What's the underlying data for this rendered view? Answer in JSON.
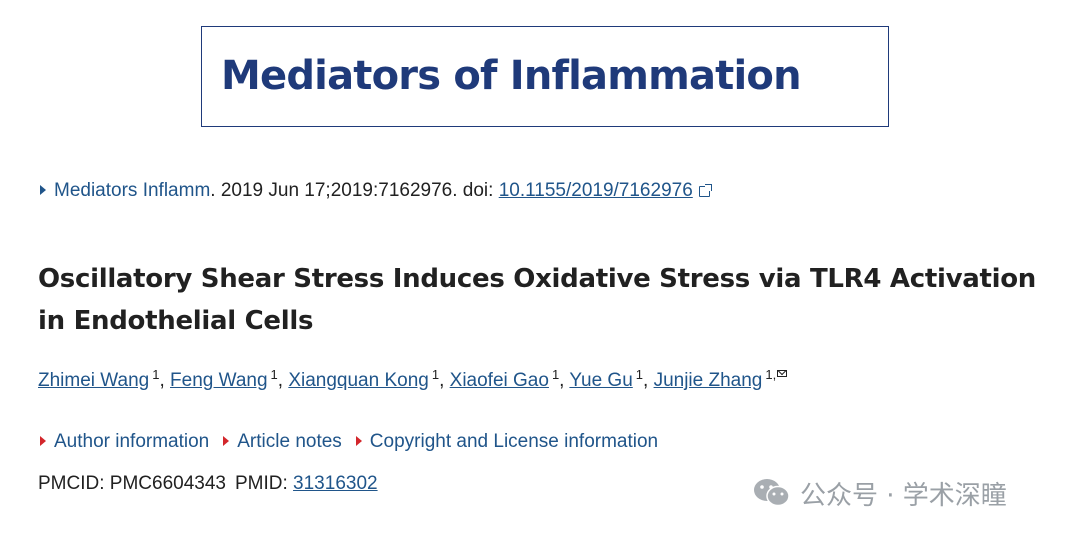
{
  "journal_banner": {
    "name": "Mediators of Inflammation"
  },
  "citation": {
    "journal": "Mediators Inflamm",
    "details": ". 2019 Jun 17;2019:7162976. doi: ",
    "doi": "10.1155/2019/7162976"
  },
  "article": {
    "title": "Oscillatory Shear Stress Induces Oxidative Stress via TLR4 Activation in Endothelial Cells"
  },
  "authors": [
    {
      "name": "Zhimei Wang",
      "affiliation": "1"
    },
    {
      "name": "Feng Wang",
      "affiliation": "1"
    },
    {
      "name": "Xiangquan Kong",
      "affiliation": "1"
    },
    {
      "name": "Xiaofei Gao",
      "affiliation": "1"
    },
    {
      "name": "Yue Gu",
      "affiliation": "1"
    },
    {
      "name": "Junjie Zhang",
      "affiliation": "1,"
    }
  ],
  "info_links": {
    "author_information": "Author information",
    "article_notes": "Article notes",
    "copyright": "Copyright and License information"
  },
  "ids": {
    "pmcid_label": "PMCID: ",
    "pmcid": "PMC6604343",
    "pmid_label": "PMID: ",
    "pmid": "31316302"
  },
  "watermark": {
    "text": "公众号 · 学术深瞳"
  },
  "colors": {
    "link": "#20558a",
    "banner": "#1f3a7a",
    "expand_marker": "#d3262b",
    "text": "#212121"
  }
}
